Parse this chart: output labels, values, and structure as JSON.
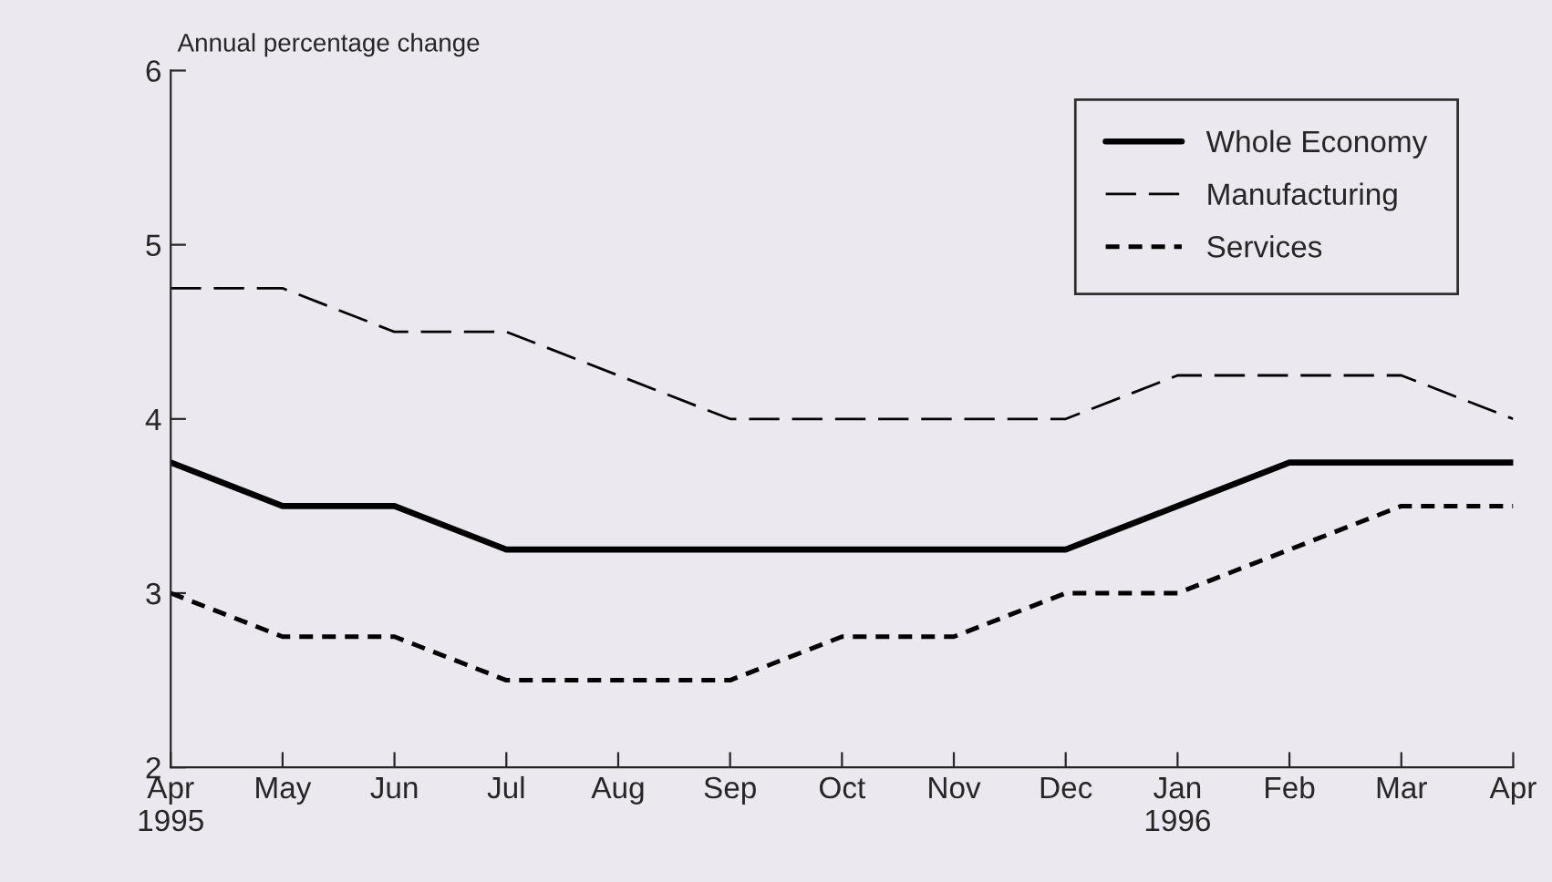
{
  "chart_data": {
    "type": "line",
    "ylabel": "Annual percentage change",
    "categories": [
      "Apr\n1995",
      "May",
      "Jun",
      "Jul",
      "Aug",
      "Sep",
      "Oct",
      "Nov",
      "Dec",
      "Jan\n1996",
      "Feb",
      "Mar",
      "Apr"
    ],
    "series": [
      {
        "name": "Whole Economy",
        "color": "#000000",
        "line_style": "solid",
        "values": [
          3.75,
          3.5,
          3.5,
          3.25,
          3.25,
          3.25,
          3.25,
          3.25,
          3.25,
          3.5,
          3.75,
          3.75,
          3.75
        ]
      },
      {
        "name": "Manufacturing",
        "color": "#000000",
        "line_style": "dashed",
        "values": [
          4.75,
          4.75,
          4.5,
          4.5,
          4.25,
          4.0,
          4.0,
          4.0,
          4.0,
          4.25,
          4.25,
          4.25,
          4.0
        ]
      },
      {
        "name": "Services",
        "color": "#000000",
        "line_style": "dotted",
        "values": [
          3.0,
          2.75,
          2.75,
          2.5,
          2.5,
          2.5,
          2.75,
          2.75,
          3.0,
          3.0,
          3.25,
          3.5,
          3.5
        ]
      }
    ],
    "ylim": [
      2,
      6
    ],
    "yticks": [
      2,
      3,
      4,
      5,
      6
    ],
    "grid": false,
    "legend": "top right",
    "marker": "none"
  }
}
